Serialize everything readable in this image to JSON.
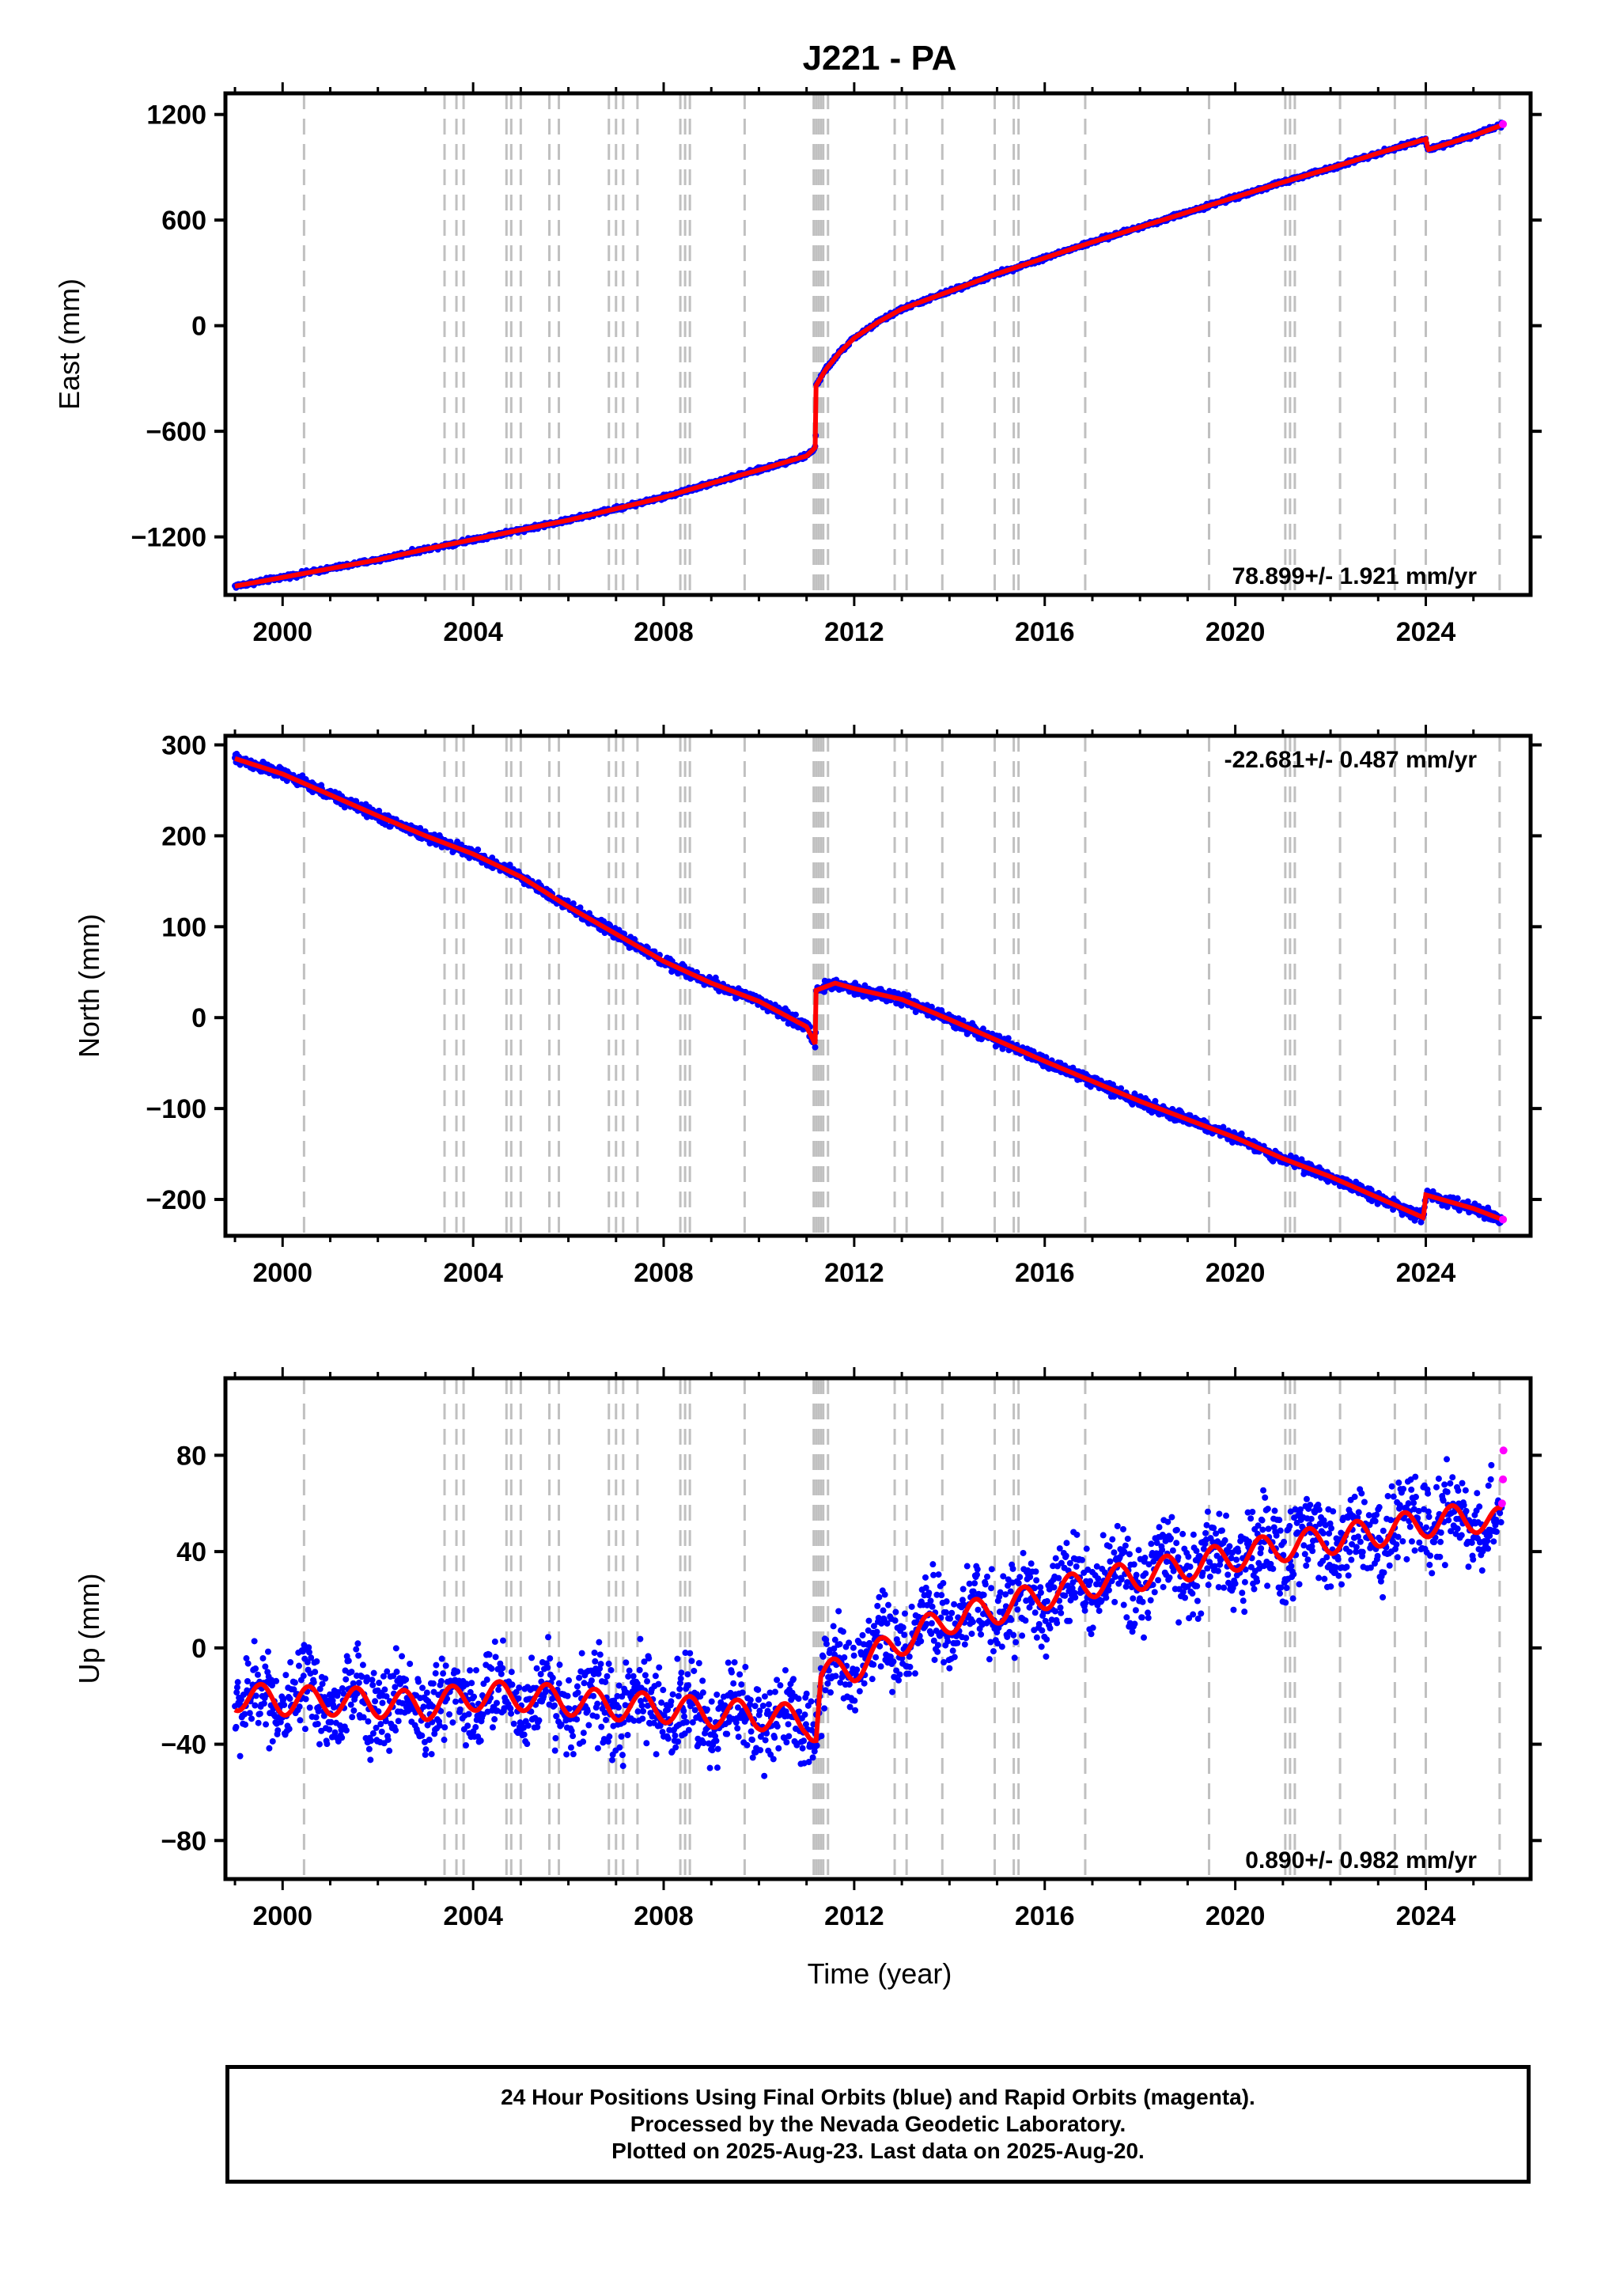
{
  "title": "J221 - PA",
  "xlabel": "Time (year)",
  "colors": {
    "final": "#0000ff",
    "rapid": "#ff00ff",
    "model": "#ff0000",
    "steps": "#c0c0c0",
    "axis": "#000000"
  },
  "footer": {
    "line1": "24 Hour Positions Using Final Orbits (blue) and Rapid Orbits (magenta).",
    "line2": "Processed by the Nevada Geodetic Laboratory.",
    "line3": "Plotted on 2025-Aug-23. Last data on 2025-Aug-20."
  },
  "chart_data": [
    {
      "type": "scatter",
      "ylabel": "East (mm)",
      "rate_label": "78.899+/- 1.921 mm/yr",
      "rate_position": "bottom-right",
      "xlim": [
        1998.8,
        2026.2
      ],
      "ylim": [
        -1530,
        1320
      ],
      "yticks": [
        -1200,
        -600,
        0,
        600,
        1200
      ],
      "yticklabels": [
        "−1200",
        "−600",
        "0",
        "600",
        "1200"
      ],
      "xticks": [
        2000,
        2004,
        2008,
        2012,
        2016,
        2020,
        2024
      ],
      "series": [
        {
          "name": "Final Orbits (blue)",
          "x": [
            1999.0,
            2000.0,
            2001.0,
            2002.0,
            2003.0,
            2004.0,
            2005.0,
            2006.0,
            2007.0,
            2008.0,
            2009.0,
            2010.0,
            2011.0,
            2011.19,
            2011.2,
            2011.4,
            2011.7,
            2012.0,
            2012.5,
            2013.0,
            2014.0,
            2015.0,
            2016.0,
            2017.0,
            2018.0,
            2019.0,
            2020.0,
            2021.0,
            2022.0,
            2023.0,
            2024.0,
            2024.05,
            2025.0,
            2025.6
          ],
          "y": [
            -1480,
            -1430,
            -1380,
            -1330,
            -1270,
            -1215,
            -1160,
            -1105,
            -1040,
            -975,
            -895,
            -820,
            -740,
            -690,
            -340,
            -250,
            -150,
            -70,
            20,
            95,
            195,
            295,
            385,
            475,
            560,
            645,
            730,
            815,
            895,
            980,
            1060,
            1000,
            1080,
            1140
          ]
        },
        {
          "name": "Rapid Orbits (magenta)",
          "x": [
            2025.62
          ],
          "y": [
            1145
          ]
        }
      ]
    },
    {
      "type": "scatter",
      "ylabel": "North (mm)",
      "rate_label": "-22.681+/- 0.487 mm/yr",
      "rate_position": "top-right",
      "xlim": [
        1998.8,
        2026.2
      ],
      "ylim": [
        -240,
        310
      ],
      "yticks": [
        -200,
        -100,
        0,
        100,
        200,
        300
      ],
      "yticklabels": [
        "−200",
        "−100",
        "0",
        "100",
        "200",
        "300"
      ],
      "xticks": [
        2000,
        2004,
        2008,
        2012,
        2016,
        2020,
        2024
      ],
      "series": [
        {
          "name": "Final Orbits (blue)",
          "x": [
            1999.0,
            2000.0,
            2001.0,
            2002.0,
            2003.0,
            2004.0,
            2005.0,
            2006.0,
            2007.0,
            2008.0,
            2009.0,
            2010.0,
            2011.0,
            2011.19,
            2011.2,
            2011.6,
            2012.0,
            2013.0,
            2014.0,
            2015.0,
            2016.0,
            2017.0,
            2018.0,
            2019.0,
            2020.0,
            2021.0,
            2022.0,
            2023.0,
            2023.95,
            2024.0,
            2025.0,
            2025.6
          ],
          "y": [
            285,
            268,
            245,
            222,
            200,
            180,
            155,
            122,
            92,
            62,
            38,
            18,
            -10,
            -30,
            30,
            38,
            32,
            20,
            -2,
            -25,
            -48,
            -70,
            -92,
            -112,
            -132,
            -155,
            -175,
            -198,
            -220,
            -195,
            -210,
            -222
          ]
        },
        {
          "name": "Rapid Orbits (magenta)",
          "x": [
            2025.62
          ],
          "y": [
            -222
          ]
        }
      ]
    },
    {
      "type": "scatter",
      "ylabel": "Up (mm)",
      "rate_label": "0.890+/- 0.982 mm/yr",
      "rate_position": "bottom-right",
      "xlim": [
        1998.8,
        2026.2
      ],
      "ylim": [
        -96,
        112
      ],
      "yticks": [
        -80,
        -40,
        0,
        40,
        80
      ],
      "yticklabels": [
        "−80",
        "−40",
        "0",
        "40",
        "80"
      ],
      "xticks": [
        2000,
        2004,
        2008,
        2012,
        2016,
        2020,
        2024
      ],
      "series": [
        {
          "name": "Final Orbits (blue)",
          "x": [
            1999.0,
            2000.0,
            2001.0,
            2002.0,
            2003.0,
            2004.0,
            2005.0,
            2006.0,
            2007.0,
            2008.0,
            2009.0,
            2010.0,
            2011.0,
            2011.2,
            2011.3,
            2012.0,
            2013.0,
            2014.0,
            2015.0,
            2016.0,
            2017.0,
            2018.0,
            2019.0,
            2020.0,
            2021.0,
            2022.0,
            2023.0,
            2024.0,
            2025.0,
            2025.6
          ],
          "y": [
            -20,
            -22,
            -22,
            -23,
            -24,
            -20,
            -20,
            -22,
            -24,
            -25,
            -27,
            -28,
            -30,
            -35,
            -12,
            -8,
            3,
            12,
            16,
            22,
            27,
            30,
            34,
            38,
            42,
            45,
            48,
            52,
            54,
            52
          ]
        },
        {
          "name": "Rapid Orbits (magenta)",
          "x": [
            2025.6,
            2025.62,
            2025.63
          ],
          "y": [
            60,
            70,
            82
          ]
        }
      ]
    }
  ],
  "steps": {
    "x": [
      2000.45,
      2003.4,
      2003.65,
      2003.8,
      2004.7,
      2004.8,
      2005.0,
      2005.6,
      2005.8,
      2006.85,
      2007.0,
      2007.15,
      2007.45,
      2008.35,
      2008.45,
      2008.55,
      2009.7,
      2011.15,
      2011.2,
      2011.25,
      2011.3,
      2011.35,
      2011.45,
      2012.85,
      2013.1,
      2013.85,
      2014.95,
      2015.35,
      2015.45,
      2016.85,
      2019.45,
      2021.05,
      2021.15,
      2021.25,
      2022.2,
      2023.35,
      2024.0,
      2025.55
    ]
  }
}
